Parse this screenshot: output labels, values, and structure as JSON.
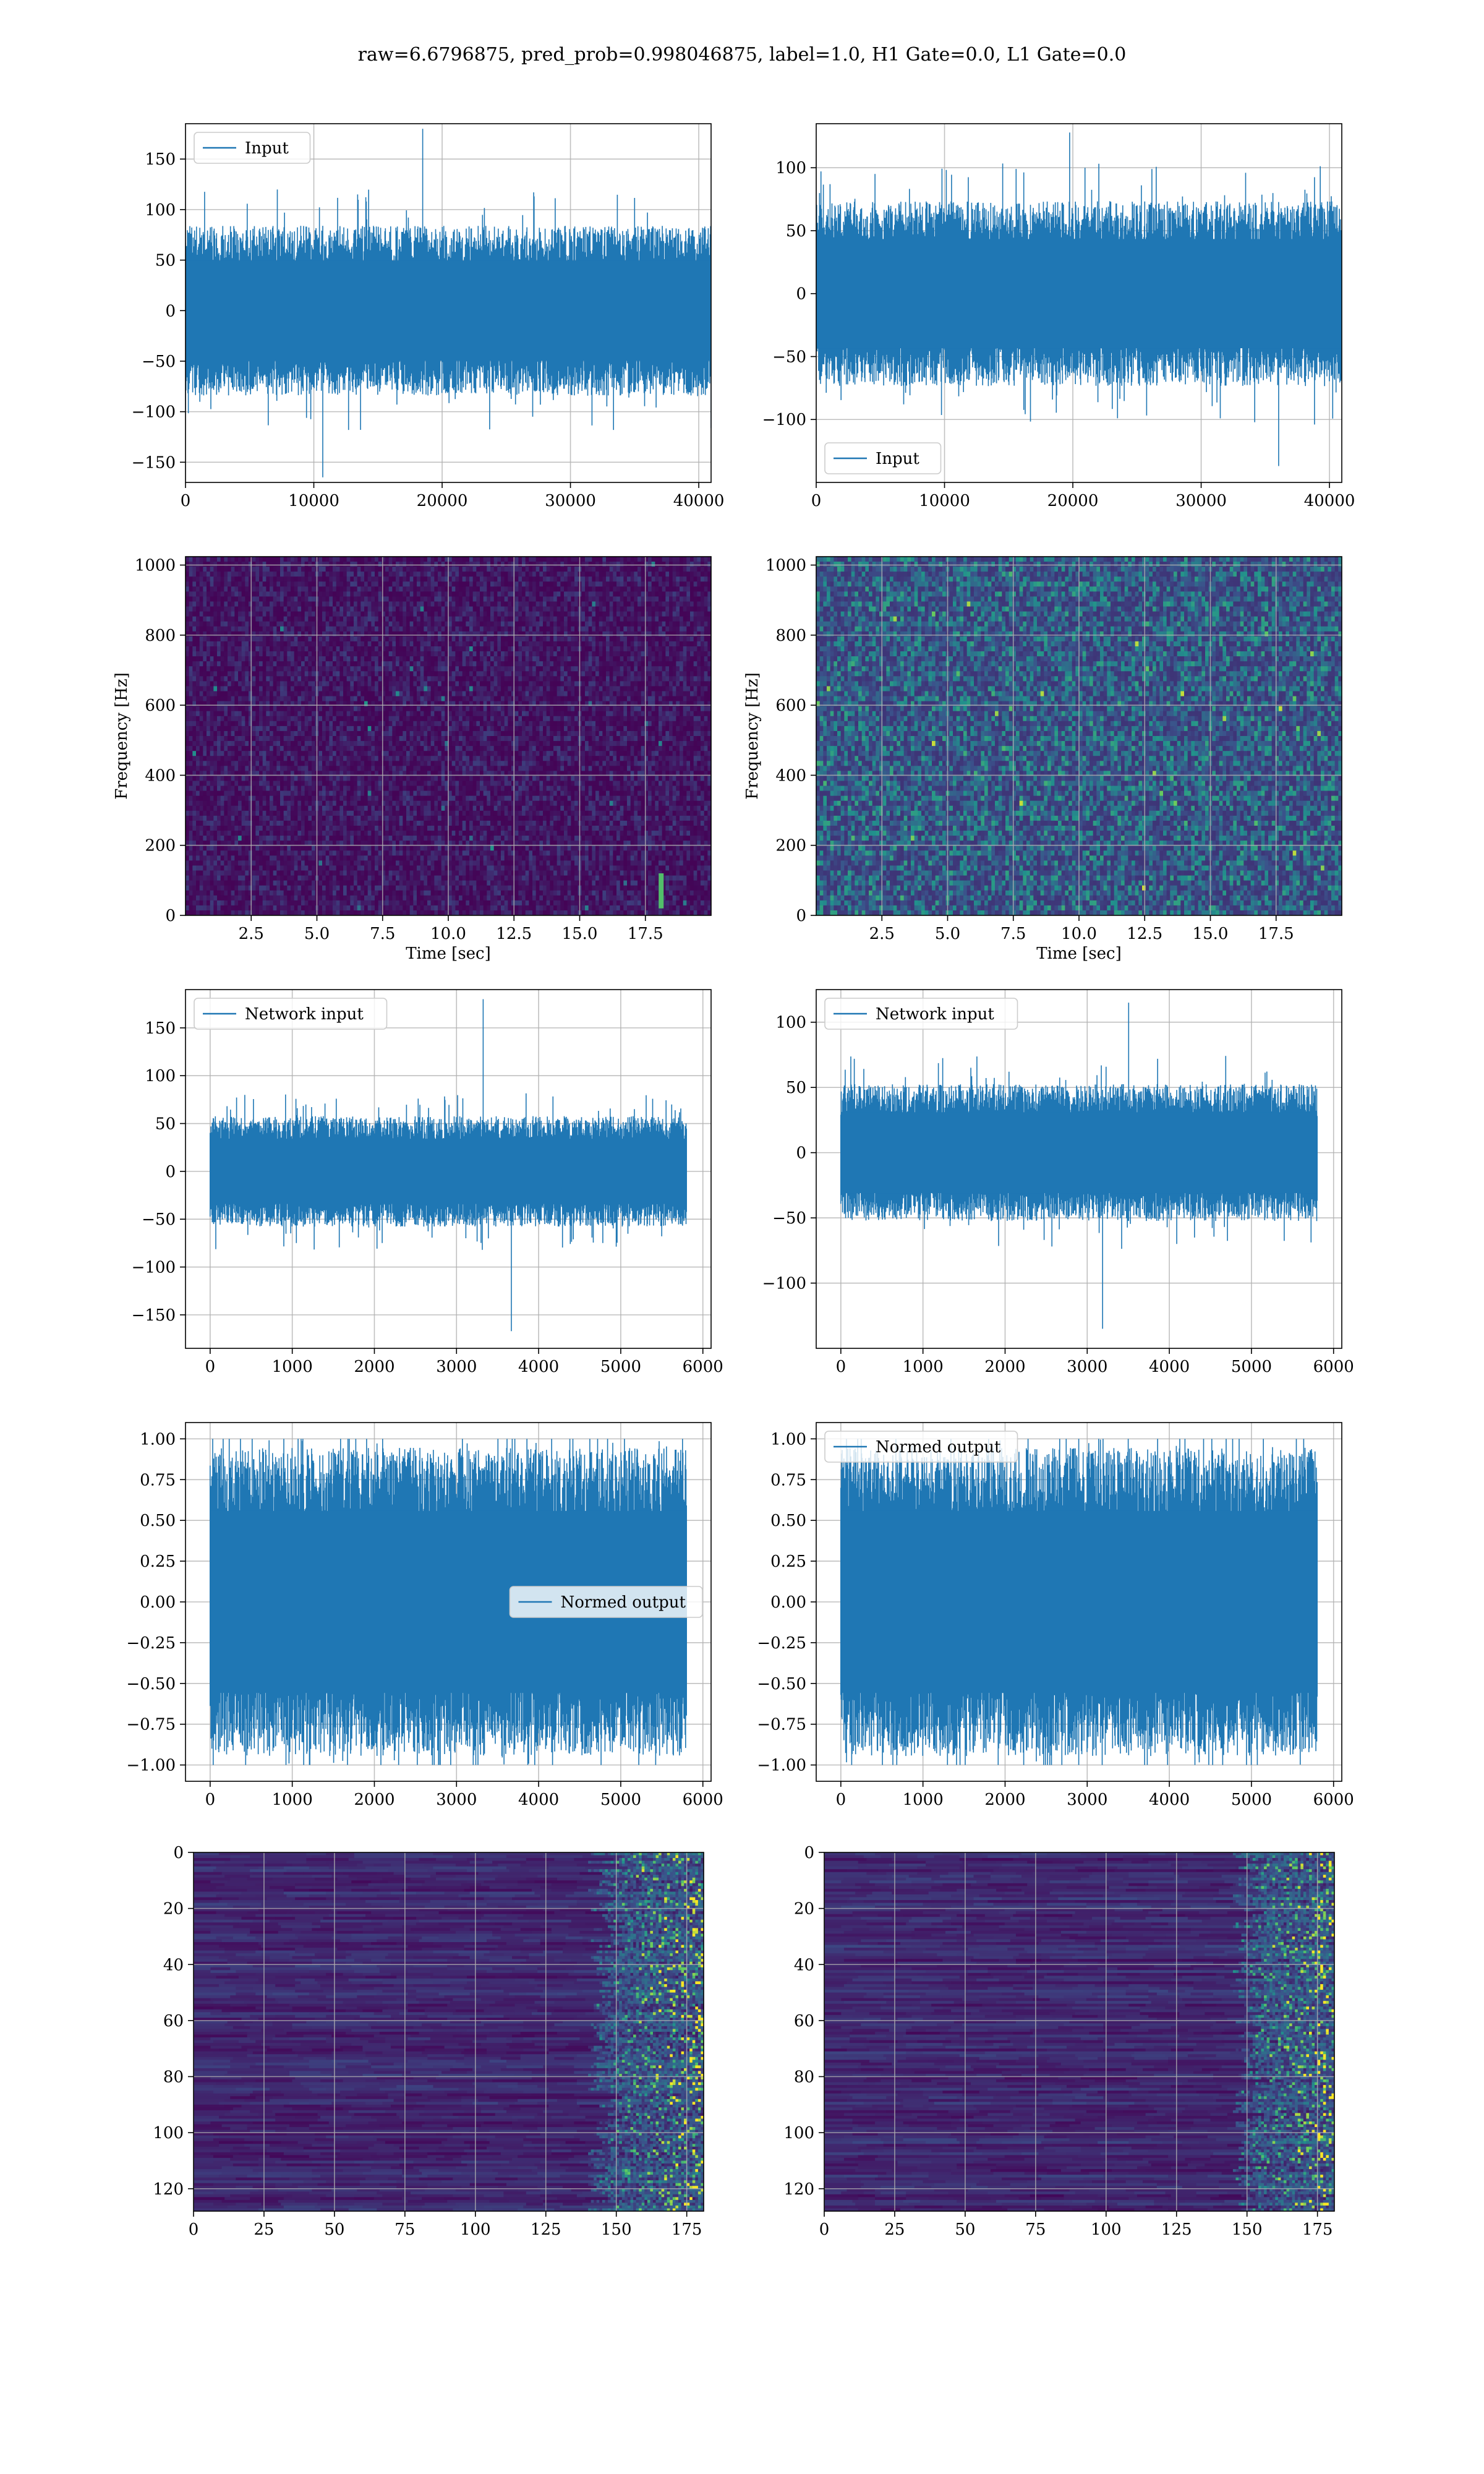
{
  "figure": {
    "suptitle": "raw=6.6796875, pred_prob=0.998046875, label=1.0, H1 Gate=0.0, L1 Gate=0.0"
  },
  "colors": {
    "line": "#1f77b4",
    "grid": "#b0b0b0",
    "viridis_low": "#440154",
    "viridis_mid": "#21918c",
    "viridis_high": "#fde725"
  },
  "chart_data": [
    {
      "id": "input-h1",
      "type": "line",
      "title": "",
      "xlabel": "",
      "ylabel": "",
      "xlim": [
        0,
        40960
      ],
      "ylim": [
        -170,
        185
      ],
      "xticks": [
        0,
        10000,
        20000,
        30000,
        40000
      ],
      "xtick_labels": [
        "0",
        "10000",
        "20000",
        "30000",
        "40000"
      ],
      "yticks": [
        -150,
        -100,
        -50,
        0,
        50,
        100,
        150
      ],
      "ytick_labels": [
        "−150",
        "−100",
        "−50",
        "0",
        "50",
        "100",
        "150"
      ],
      "grid": true,
      "legend": {
        "entries": [
          "Input"
        ],
        "position": "upper-left"
      },
      "series": [
        {
          "name": "Input",
          "envelope": {
            "typical_amplitude": 80,
            "peak_max": 180,
            "peak_min": -165,
            "x_range": [
              0,
              40960
            ]
          }
        }
      ]
    },
    {
      "id": "input-l1",
      "type": "line",
      "title": "",
      "xlabel": "",
      "ylabel": "",
      "xlim": [
        0,
        40960
      ],
      "ylim": [
        -150,
        135
      ],
      "xticks": [
        0,
        10000,
        20000,
        30000,
        40000
      ],
      "xtick_labels": [
        "0",
        "10000",
        "20000",
        "30000",
        "40000"
      ],
      "yticks": [
        -100,
        -50,
        0,
        50,
        100
      ],
      "ytick_labels": [
        "−100",
        "−50",
        "0",
        "50",
        "100"
      ],
      "grid": true,
      "legend": {
        "entries": [
          "Input"
        ],
        "position": "lower-left"
      },
      "series": [
        {
          "name": "Input",
          "envelope": {
            "typical_amplitude": 70,
            "peak_max": 128,
            "peak_min": -137,
            "x_range": [
              0,
              40960
            ]
          }
        }
      ]
    },
    {
      "id": "spectrogram-h1",
      "type": "heatmap",
      "title": "",
      "xlabel": "Time [sec]",
      "ylabel": "Frequency [Hz]",
      "xlim": [
        0,
        20
      ],
      "ylim": [
        0,
        1024
      ],
      "xticks": [
        2.5,
        5.0,
        7.5,
        10.0,
        12.5,
        15.0,
        17.5
      ],
      "xtick_labels": [
        "2.5",
        "5.0",
        "7.5",
        "10.0",
        "12.5",
        "15.0",
        "17.5"
      ],
      "yticks": [
        0,
        200,
        400,
        600,
        800,
        1000
      ],
      "ytick_labels": [
        "0",
        "200",
        "400",
        "600",
        "800",
        "1000"
      ],
      "grid": true,
      "colormap": "viridis",
      "intensity": "low",
      "features": [
        {
          "kind": "chirp",
          "x": 18.1,
          "y_range": [
            20,
            120
          ]
        }
      ]
    },
    {
      "id": "spectrogram-l1",
      "type": "heatmap",
      "title": "",
      "xlabel": "Time [sec]",
      "ylabel": "Frequency [Hz]",
      "xlim": [
        0,
        20
      ],
      "ylim": [
        0,
        1024
      ],
      "xticks": [
        2.5,
        5.0,
        7.5,
        10.0,
        12.5,
        15.0,
        17.5
      ],
      "xtick_labels": [
        "2.5",
        "5.0",
        "7.5",
        "10.0",
        "12.5",
        "15.0",
        "17.5"
      ],
      "yticks": [
        0,
        200,
        400,
        600,
        800,
        1000
      ],
      "ytick_labels": [
        "0",
        "200",
        "400",
        "600",
        "800",
        "1000"
      ],
      "grid": true,
      "colormap": "viridis",
      "intensity": "medium",
      "features": []
    },
    {
      "id": "network-input-h1",
      "type": "line",
      "title": "",
      "xlabel": "",
      "ylabel": "",
      "xlim": [
        -300,
        6100
      ],
      "ylim": [
        -185,
        190
      ],
      "xticks": [
        0,
        1000,
        2000,
        3000,
        4000,
        5000,
        6000
      ],
      "xtick_labels": [
        "0",
        "1000",
        "2000",
        "3000",
        "4000",
        "5000",
        "6000"
      ],
      "yticks": [
        -150,
        -100,
        -50,
        0,
        50,
        100,
        150
      ],
      "ytick_labels": [
        "−150",
        "−100",
        "−50",
        "0",
        "50",
        "100",
        "150"
      ],
      "grid": true,
      "legend": {
        "entries": [
          "Network input"
        ],
        "position": "upper-left"
      },
      "series": [
        {
          "name": "Network input",
          "envelope": {
            "typical_amplitude": 55,
            "peak_max": 180,
            "peak_min": -167,
            "x_range": [
              0,
              5800
            ]
          }
        }
      ]
    },
    {
      "id": "network-input-l1",
      "type": "line",
      "title": "",
      "xlabel": "",
      "ylabel": "",
      "xlim": [
        -300,
        6100
      ],
      "ylim": [
        -150,
        125
      ],
      "xticks": [
        0,
        1000,
        2000,
        3000,
        4000,
        5000,
        6000
      ],
      "xtick_labels": [
        "0",
        "1000",
        "2000",
        "3000",
        "4000",
        "5000",
        "6000"
      ],
      "yticks": [
        -100,
        -50,
        0,
        50,
        100
      ],
      "ytick_labels": [
        "−100",
        "−50",
        "0",
        "50",
        "100"
      ],
      "grid": true,
      "legend": {
        "entries": [
          "Network input"
        ],
        "position": "upper-left"
      },
      "series": [
        {
          "name": "Network input",
          "envelope": {
            "typical_amplitude": 50,
            "peak_max": 115,
            "peak_min": -135,
            "x_range": [
              0,
              5800
            ]
          }
        }
      ]
    },
    {
      "id": "normed-output-h1",
      "type": "line",
      "title": "",
      "xlabel": "",
      "ylabel": "",
      "xlim": [
        -300,
        6100
      ],
      "ylim": [
        -1.1,
        1.1
      ],
      "xticks": [
        0,
        1000,
        2000,
        3000,
        4000,
        5000,
        6000
      ],
      "xtick_labels": [
        "0",
        "1000",
        "2000",
        "3000",
        "4000",
        "5000",
        "6000"
      ],
      "yticks": [
        -1.0,
        -0.75,
        -0.5,
        -0.25,
        0.0,
        0.25,
        0.5,
        0.75,
        1.0
      ],
      "ytick_labels": [
        "−1.00",
        "−0.75",
        "−0.50",
        "−0.25",
        "0.00",
        "0.25",
        "0.50",
        "0.75",
        "1.00"
      ],
      "grid": true,
      "legend": {
        "entries": [
          "Normed output"
        ],
        "position": "center-right"
      },
      "series": [
        {
          "name": "Normed output",
          "envelope": {
            "typical_amplitude": 0.9,
            "peak_max": 1.0,
            "peak_min": -1.0,
            "x_range": [
              0,
              5800
            ]
          }
        }
      ]
    },
    {
      "id": "normed-output-l1",
      "type": "line",
      "title": "",
      "xlabel": "",
      "ylabel": "",
      "xlim": [
        -300,
        6100
      ],
      "ylim": [
        -1.1,
        1.1
      ],
      "xticks": [
        0,
        1000,
        2000,
        3000,
        4000,
        5000,
        6000
      ],
      "xtick_labels": [
        "0",
        "1000",
        "2000",
        "3000",
        "4000",
        "5000",
        "6000"
      ],
      "yticks": [
        -1.0,
        -0.75,
        -0.5,
        -0.25,
        0.0,
        0.25,
        0.5,
        0.75,
        1.0
      ],
      "ytick_labels": [
        "−1.00",
        "−0.75",
        "−0.50",
        "−0.25",
        "0.00",
        "0.25",
        "0.50",
        "0.75",
        "1.00"
      ],
      "grid": true,
      "legend": {
        "entries": [
          "Normed output"
        ],
        "position": "upper-left"
      },
      "series": [
        {
          "name": "Normed output",
          "envelope": {
            "typical_amplitude": 0.9,
            "peak_max": 1.0,
            "peak_min": -1.0,
            "x_range": [
              0,
              5800
            ]
          }
        }
      ]
    },
    {
      "id": "feature-map-h1",
      "type": "heatmap",
      "title": "",
      "xlabel": "",
      "ylabel": "",
      "xlim": [
        0,
        181
      ],
      "ylim": [
        128,
        0
      ],
      "xticks": [
        0,
        25,
        50,
        75,
        100,
        125,
        150,
        175
      ],
      "xtick_labels": [
        "0",
        "25",
        "50",
        "75",
        "100",
        "125",
        "150",
        "175"
      ],
      "yticks": [
        0,
        20,
        40,
        60,
        80,
        100,
        120
      ],
      "ytick_labels": [
        "0",
        "20",
        "40",
        "60",
        "80",
        "100",
        "120"
      ],
      "grid": true,
      "colormap": "viridis",
      "bright_region_x": [
        140,
        181
      ],
      "rows": 128,
      "cols": 181
    },
    {
      "id": "feature-map-l1",
      "type": "heatmap",
      "title": "",
      "xlabel": "",
      "ylabel": "",
      "xlim": [
        0,
        181
      ],
      "ylim": [
        128,
        0
      ],
      "xticks": [
        0,
        25,
        50,
        75,
        100,
        125,
        150,
        175
      ],
      "xtick_labels": [
        "0",
        "25",
        "50",
        "75",
        "100",
        "125",
        "150",
        "175"
      ],
      "yticks": [
        0,
        20,
        40,
        60,
        80,
        100,
        120
      ],
      "ytick_labels": [
        "0",
        "20",
        "40",
        "60",
        "80",
        "100",
        "120"
      ],
      "grid": true,
      "colormap": "viridis",
      "bright_region_x": [
        145,
        181
      ],
      "rows": 128,
      "cols": 181
    }
  ]
}
